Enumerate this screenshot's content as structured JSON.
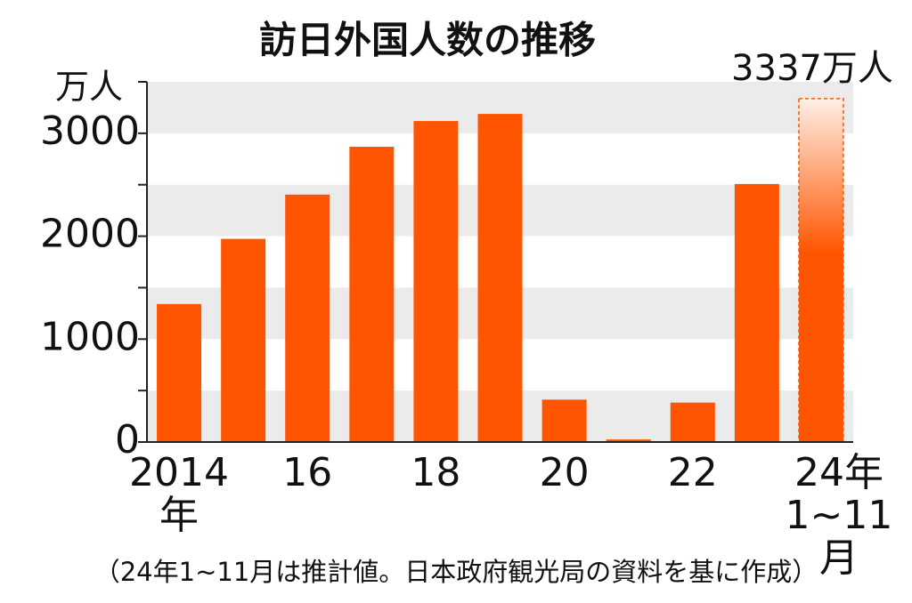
{
  "chart_data": {
    "type": "bar",
    "title": "訪日外国人数の推移",
    "y_unit": "万人",
    "categories": [
      "2014\n年",
      null,
      "16",
      null,
      "18",
      null,
      "20",
      null,
      "22",
      null,
      "24年\n1~11月"
    ],
    "values": [
      1341,
      1974,
      2404,
      2869,
      3119,
      3188,
      412,
      25,
      383,
      2507,
      3337
    ],
    "value_labels": [
      null,
      null,
      null,
      null,
      null,
      null,
      null,
      null,
      null,
      null,
      "3337万人"
    ],
    "color": "#ff5500",
    "ylim": [
      0,
      3500
    ],
    "yticks": [
      0,
      1000,
      2000,
      3000
    ],
    "minor_yticks": [
      500,
      1500,
      2500,
      3500
    ],
    "note": "（24年1~11月は推計値。日本政府観光局の資料を基に作成）"
  }
}
